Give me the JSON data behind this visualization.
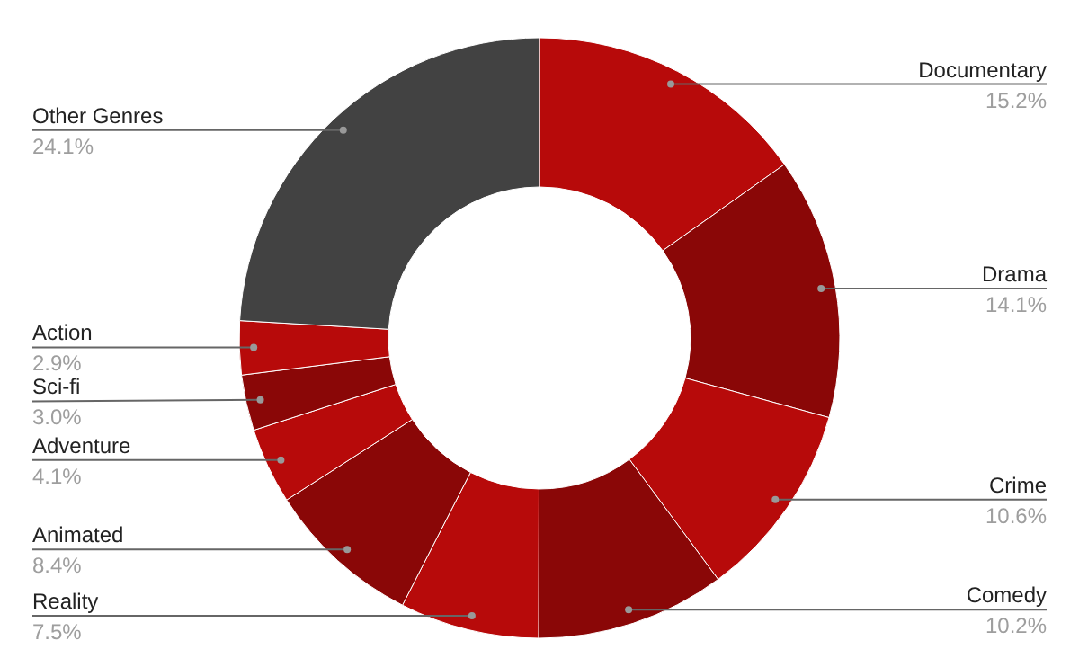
{
  "chart_data": {
    "type": "donut",
    "categories": [
      "Documentary",
      "Drama",
      "Crime",
      "Comedy",
      "Reality",
      "Animated",
      "Adventure",
      "Sci-fi",
      "Action",
      "Other Genres"
    ],
    "values": [
      15.2,
      14.1,
      10.6,
      10.2,
      7.5,
      8.4,
      4.1,
      3.0,
      2.9,
      24.1
    ],
    "value_labels": [
      "15.2%",
      "14.1%",
      "10.6%",
      "10.2%",
      "7.5%",
      "8.4%",
      "4.1%",
      "3.0%",
      "2.9%",
      "24.1%"
    ],
    "colors": [
      "#b70a0a",
      "#8a0707",
      "#b70a0a",
      "#8a0707",
      "#b70a0a",
      "#8a0707",
      "#b70a0a",
      "#8a0707",
      "#b70a0a",
      "#424242"
    ],
    "legend": false
  }
}
